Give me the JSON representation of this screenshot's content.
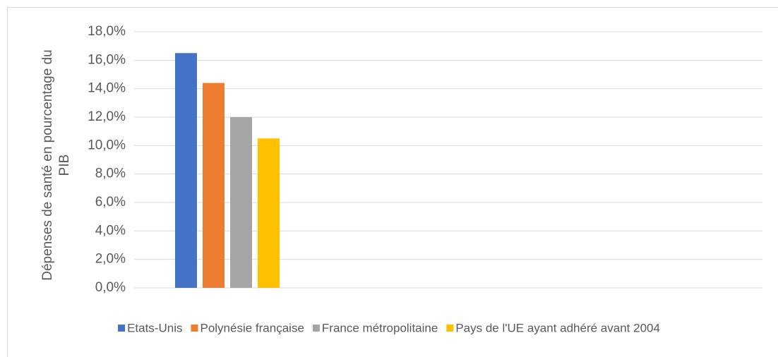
{
  "chart_data": {
    "type": "bar",
    "y_label": "Dépenses de santé en pourcentage du PIB",
    "categories": [
      null
    ],
    "series": [
      {
        "name": "Etats-Unis",
        "color": "#4472c4",
        "values": [
          16.5
        ]
      },
      {
        "name": "Polynésie française",
        "color": "#ed7d31",
        "values": [
          14.4
        ]
      },
      {
        "name": "France métropolitaine",
        "color": "#a5a5a5",
        "values": [
          12.0
        ]
      },
      {
        "name": "Pays de l'UE ayant adhéré avant 2004",
        "color": "#ffc000",
        "values": [
          10.5
        ]
      }
    ],
    "ylim": [
      0,
      18
    ],
    "yticks": [
      {
        "value": 0,
        "label": "0,0%"
      },
      {
        "value": 2,
        "label": "2,0%"
      },
      {
        "value": 4,
        "label": "4,0%"
      },
      {
        "value": 6,
        "label": "6,0%"
      },
      {
        "value": 8,
        "label": "8,0%"
      },
      {
        "value": 10,
        "label": "10,0%"
      },
      {
        "value": 12,
        "label": "12,0%"
      },
      {
        "value": 14,
        "label": "14,0%"
      },
      {
        "value": 16,
        "label": "16,0%"
      },
      {
        "value": 18,
        "label": "18,0%"
      }
    ],
    "grid": true,
    "legend": "bottom"
  }
}
